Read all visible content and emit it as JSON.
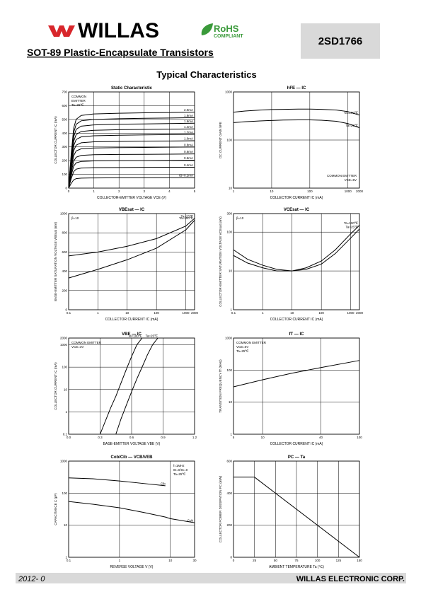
{
  "header": {
    "brand": "WILLAS",
    "rohs": "RoHS",
    "compliant": "COMPLIANT",
    "part": "2SD1766",
    "subtitle": "SOT-89 Plastic-Encapsulate Transistors",
    "section": "Typical Characteristics"
  },
  "chart_data": [
    {
      "type": "line",
      "title": "Static Characteristic",
      "xlabel": "COLLECTOR-EMITTER VOLTAGE VCE (V)",
      "ylabel": "COLLECTOR CURRENT IC (mA)",
      "xlim": [
        0,
        5
      ],
      "ylim": [
        0,
        700
      ],
      "xticks": [
        0,
        1,
        2,
        3,
        4,
        5
      ],
      "yticks": [
        0,
        100,
        200,
        300,
        400,
        500,
        600,
        700
      ],
      "xlog": false,
      "ylog": false,
      "grid": true,
      "annotations": [
        "COMMON",
        "EMITTER",
        "Ta=25℃"
      ],
      "x": [
        0,
        0.1,
        0.2,
        0.3,
        0.5,
        1,
        2,
        3,
        4,
        5
      ],
      "series": [
        {
          "name": "2.0mA",
          "color": "#000",
          "values": [
            0,
            245,
            436,
            501,
            529,
            540,
            545,
            548,
            550,
            553
          ]
        },
        {
          "name": "1.8mA",
          "color": "#000",
          "values": [
            0,
            227,
            404,
            465,
            490,
            500,
            505,
            508,
            510,
            513
          ]
        },
        {
          "name": "1.6mA",
          "color": "#000",
          "values": [
            0,
            209,
            372,
            428,
            451,
            460,
            465,
            467,
            470,
            472
          ]
        },
        {
          "name": "1.4mA",
          "color": "#000",
          "values": [
            0,
            191,
            340,
            391,
            412,
            421,
            425,
            427,
            429,
            431
          ]
        },
        {
          "name": "1.2mA",
          "color": "#000",
          "values": [
            0,
            173,
            308,
            354,
            373,
            381,
            385,
            387,
            389,
            391
          ]
        },
        {
          "name": "1.0mA",
          "color": "#000",
          "values": [
            0,
            153,
            272,
            313,
            330,
            337,
            340,
            342,
            343,
            345
          ]
        },
        {
          "name": "0.8mA",
          "color": "#000",
          "values": [
            0,
            133,
            236,
            271,
            286,
            292,
            295,
            296,
            298,
            299
          ]
        },
        {
          "name": "0.6mA",
          "color": "#000",
          "values": [
            0,
            110,
            196,
            225,
            238,
            243,
            245,
            246,
            247,
            249
          ]
        },
        {
          "name": "0.5mA",
          "color": "#000",
          "values": [
            0,
            90,
            160,
            184,
            194,
            198,
            200,
            201,
            202,
            203
          ]
        },
        {
          "name": "0.4mA",
          "color": "#000",
          "values": [
            0,
            68,
            120,
            138,
            146,
            149,
            150,
            151,
            152,
            152
          ]
        },
        {
          "name": "IB=0.2mA",
          "color": "#000",
          "values": [
            0,
            34,
            60,
            69,
            73,
            74,
            75,
            75,
            76,
            76
          ]
        }
      ]
    },
    {
      "type": "line",
      "title": "hFE — IC",
      "xlabel": "COLLECTOR CURRENT IC (mA)",
      "ylabel": "DC CURRENT GAIN hFE",
      "xlim": [
        1,
        2000
      ],
      "ylim": [
        10,
        1000
      ],
      "xticks": [
        1,
        10,
        100,
        1000,
        2000
      ],
      "yticks": [
        10,
        100,
        1000
      ],
      "xlog": true,
      "ylog": true,
      "grid": true,
      "annotations": [
        "COMMON EMITTER",
        "VCE=5V"
      ],
      "x": [
        1,
        2,
        5,
        10,
        20,
        50,
        100,
        200,
        500,
        1000,
        2000
      ],
      "series": [
        {
          "name": "Ta=100℃",
          "color": "#000",
          "values": [
            380,
            400,
            420,
            430,
            435,
            440,
            440,
            435,
            420,
            390,
            330
          ]
        },
        {
          "name": "Ta=25℃",
          "color": "#000",
          "values": [
            230,
            240,
            250,
            255,
            260,
            262,
            262,
            258,
            245,
            220,
            180
          ]
        }
      ]
    },
    {
      "type": "line",
      "title": "VBEsat — IC",
      "xlabel": "COLLECTOR CURRENT IC (mA)",
      "ylabel": "BASE-EMITTER SATURATION VOLTAGE VBEsat (mV)",
      "xlim": [
        0.1,
        2000
      ],
      "ylim": [
        0,
        1000
      ],
      "xticks": [
        0.1,
        1,
        10,
        100,
        1000,
        2000
      ],
      "yticks": [
        0,
        200,
        400,
        600,
        800,
        1000
      ],
      "xlog": true,
      "ylog": false,
      "grid": true,
      "annotations": [
        "β=10"
      ],
      "x": [
        0.1,
        1,
        10,
        100,
        1000,
        2000
      ],
      "series": [
        {
          "name": "Ta=25℃",
          "color": "#000",
          "values": [
            560,
            600,
            660,
            740,
            870,
            950
          ]
        },
        {
          "name": "Ta=100℃",
          "color": "#000",
          "values": [
            330,
            420,
            520,
            640,
            830,
            930
          ]
        }
      ]
    },
    {
      "type": "line",
      "title": "VCEsat — IC",
      "xlabel": "COLLECTOR CURRENT IC (mA)",
      "ylabel": "COLLECTOR-EMITTER SATURATION VOLTAGE VCEsat (mV)",
      "xlim": [
        0.1,
        2000
      ],
      "ylim": [
        1,
        300
      ],
      "xticks": [
        0.1,
        1,
        10,
        100,
        1000,
        2000
      ],
      "yticks": [
        1,
        10,
        100,
        300
      ],
      "xlog": true,
      "ylog": true,
      "grid": true,
      "annotations": [
        "β=10"
      ],
      "x": [
        0.1,
        0.3,
        1,
        3,
        10,
        30,
        100,
        300,
        1000,
        2000
      ],
      "series": [
        {
          "name": "Ta=100℃",
          "color": "#000",
          "values": [
            25,
            16,
            12,
            10,
            10,
            12,
            18,
            35,
            90,
            150
          ]
        },
        {
          "name": "Ta=25℃",
          "color": "#000",
          "values": [
            35,
            20,
            14,
            11,
            10,
            11,
            15,
            28,
            70,
            120
          ]
        }
      ]
    },
    {
      "type": "line",
      "title": "VBE — IC",
      "xlabel": "BASE-EMITTER VOLTAGE VBE (V)",
      "ylabel": "COLLECTOR CURRENT IC (mA)",
      "xlim": [
        0,
        1.2
      ],
      "ylim": [
        0.1,
        2000
      ],
      "xticks": [
        {
          "value": 0,
          "label": "0.0"
        },
        0.3,
        0.6,
        0.9,
        1.2
      ],
      "yticks": [
        0.1,
        1,
        10,
        100,
        1000,
        2000
      ],
      "xlog": false,
      "ylog": true,
      "grid": true,
      "annotations": [
        "COMMON EMITTER",
        "VCE=3V"
      ],
      "x": [
        0.3,
        0.4,
        0.45,
        0.5,
        0.55,
        0.6,
        0.65,
        0.7,
        0.75,
        0.8,
        0.85
      ],
      "series": [
        {
          "name": "Ta=100℃",
          "color": "#000",
          "values": [
            0.1,
            1.5,
            5,
            20,
            80,
            300,
            1000,
            2000,
            null,
            null,
            null
          ]
        },
        {
          "name": "Ta=25℃",
          "color": "#000",
          "values": [
            null,
            null,
            0.1,
            0.5,
            2,
            8,
            30,
            100,
            350,
            1000,
            2000
          ]
        }
      ]
    },
    {
      "type": "line",
      "title": "fT — IC",
      "xlabel": "COLLECTOR CURRENT IC (mA)",
      "ylabel": "TRANSITION FREQUENCY fT (MHz)",
      "xlim": [
        5,
        100
      ],
      "ylim": [
        1,
        1000
      ],
      "xticks": [
        5,
        10,
        40,
        100
      ],
      "yticks": [
        1,
        10,
        100,
        1000
      ],
      "xlog": true,
      "ylog": true,
      "grid": true,
      "annotations": [
        "COMMON EMITTER",
        "VCE=5V",
        "Ta=25℃"
      ],
      "x": [
        5,
        10,
        20,
        40,
        100
      ],
      "series": [
        {
          "name": "fT",
          "color": "#000",
          "values": [
            30,
            50,
            80,
            120,
            200
          ]
        }
      ]
    },
    {
      "type": "line",
      "title": "Cob/Cib — VCB/VEB",
      "xlabel": "REVERSE VOLTAGE V (V)",
      "ylabel": "CAPACITANCE C (pF)",
      "xlim": [
        0.1,
        30
      ],
      "ylim": [
        1,
        1000
      ],
      "xticks": [
        0.1,
        1,
        10,
        30
      ],
      "yticks": [
        1,
        10,
        100,
        1000
      ],
      "xlog": true,
      "ylog": true,
      "grid": true,
      "annotations": [
        "f=1MHz",
        "IE=0/IC=0",
        "Ta=25℃"
      ],
      "x": [
        0.1,
        0.3,
        1,
        3,
        8,
        10,
        30
      ],
      "series": [
        {
          "name": "Cib",
          "color": "#000",
          "values": [
            300,
            280,
            240,
            200,
            170,
            null,
            null
          ]
        },
        {
          "name": "Cob",
          "color": "#000",
          "values": [
            55,
            45,
            35,
            25,
            18,
            16,
            12
          ]
        }
      ]
    },
    {
      "type": "line",
      "title": "PC — Ta",
      "xlabel": "AMBIENT TEMPERATURE Ta (℃)",
      "ylabel": "COLLECTOR POWER DISSIPATION PC (mW)",
      "xlim": [
        0,
        150
      ],
      "ylim": [
        0,
        600
      ],
      "xticks": [
        0,
        25,
        50,
        75,
        100,
        125,
        150
      ],
      "yticks": [
        0,
        200,
        400,
        600
      ],
      "xlog": false,
      "ylog": false,
      "grid": true,
      "annotations": [],
      "x": [
        0,
        25,
        150
      ],
      "series": [
        {
          "name": "PC",
          "color": "#000",
          "values": [
            500,
            500,
            0
          ]
        }
      ]
    }
  ],
  "footer": {
    "date": "2012- 0",
    "company": "WILLAS ELECTRONIC CORP."
  }
}
